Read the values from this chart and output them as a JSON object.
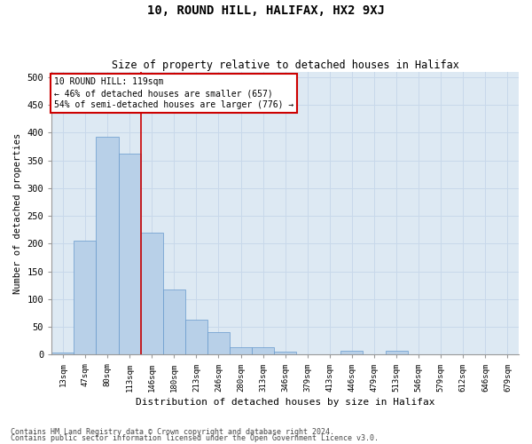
{
  "title": "10, ROUND HILL, HALIFAX, HX2 9XJ",
  "subtitle": "Size of property relative to detached houses in Halifax",
  "xlabel": "Distribution of detached houses by size in Halifax",
  "ylabel": "Number of detached properties",
  "categories": [
    "13sqm",
    "47sqm",
    "80sqm",
    "113sqm",
    "146sqm",
    "180sqm",
    "213sqm",
    "246sqm",
    "280sqm",
    "313sqm",
    "346sqm",
    "379sqm",
    "413sqm",
    "446sqm",
    "479sqm",
    "513sqm",
    "546sqm",
    "579sqm",
    "612sqm",
    "646sqm",
    "679sqm"
  ],
  "values": [
    3,
    205,
    393,
    363,
    220,
    118,
    63,
    40,
    13,
    14,
    6,
    1,
    1,
    7,
    1,
    7,
    1,
    1,
    1,
    1,
    1
  ],
  "bar_color": "#b8d0e8",
  "bar_edge_color": "#6699cc",
  "grid_color": "#c8d8ea",
  "bg_color": "#dde9f3",
  "property_line_color": "#cc0000",
  "annotation_line1": "10 ROUND HILL: 119sqm",
  "annotation_line2": "← 46% of detached houses are smaller (657)",
  "annotation_line3": "54% of semi-detached houses are larger (776) →",
  "annotation_box_color": "#ffffff",
  "annotation_box_edge": "#cc0000",
  "footnote1": "Contains HM Land Registry data © Crown copyright and database right 2024.",
  "footnote2": "Contains public sector information licensed under the Open Government Licence v3.0.",
  "ylim": [
    0,
    510
  ],
  "yticks": [
    0,
    50,
    100,
    150,
    200,
    250,
    300,
    350,
    400,
    450,
    500
  ]
}
